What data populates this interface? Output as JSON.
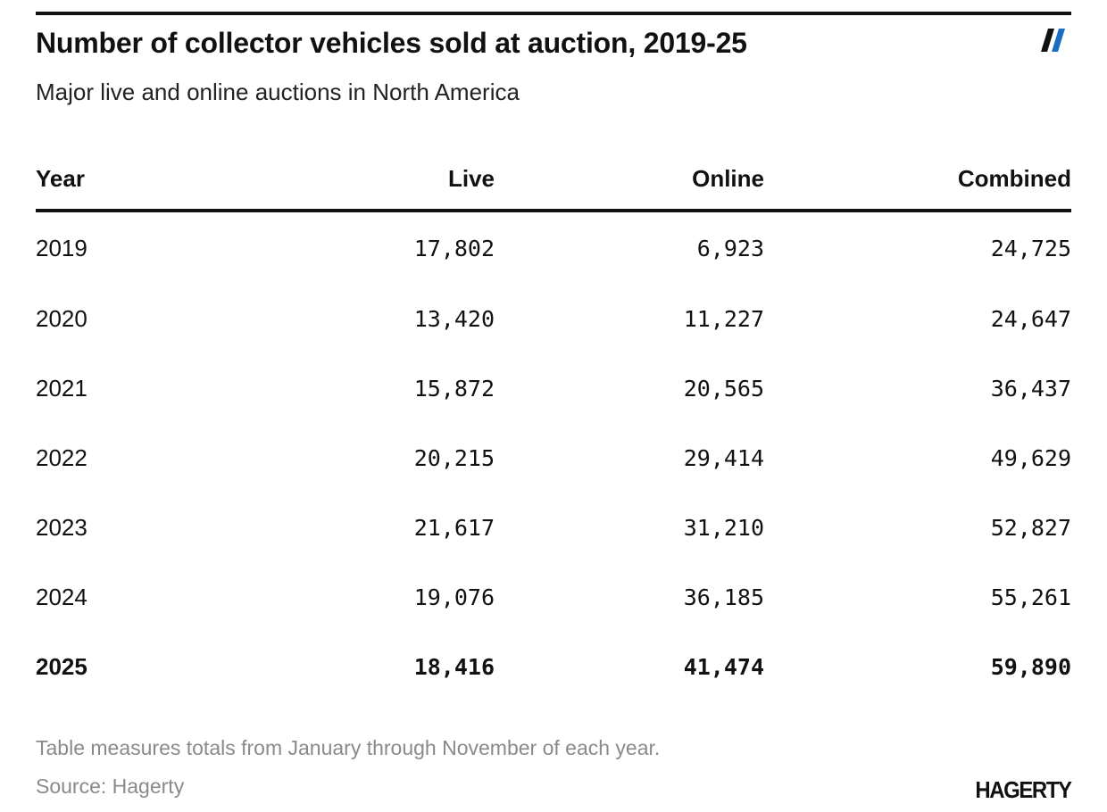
{
  "header": {
    "title": "Number of collector vehicles sold at auction, 2019-25",
    "subtitle": "Major live and online auctions in North America"
  },
  "chart_data": {
    "type": "table",
    "title": "Number of collector vehicles sold at auction, 2019-25",
    "subtitle": "Major live and online auctions in North America",
    "columns": [
      "Year",
      "Live",
      "Online",
      "Combined"
    ],
    "rows": [
      [
        "2019",
        "17,802",
        "6,923",
        "24,725"
      ],
      [
        "2020",
        "13,420",
        "11,227",
        "24,647"
      ],
      [
        "2021",
        "15,872",
        "20,565",
        "36,437"
      ],
      [
        "2022",
        "20,215",
        "29,414",
        "49,629"
      ],
      [
        "2023",
        "21,617",
        "31,210",
        "52,827"
      ],
      [
        "2024",
        "19,076",
        "36,185",
        "55,261"
      ],
      [
        "2025",
        "18,416",
        "41,474",
        "59,890"
      ]
    ],
    "highlight_row": "2025"
  },
  "footer": {
    "note": "Table measures totals from January through November of each year.",
    "source": "Source: Hagerty",
    "logo": "HAGERTY"
  },
  "colors": {
    "text": "#111111",
    "muted": "#8a8a8a",
    "brand_accent": "#1a6fc4"
  },
  "icons": {
    "brand_mark": "double-slash-icon"
  }
}
